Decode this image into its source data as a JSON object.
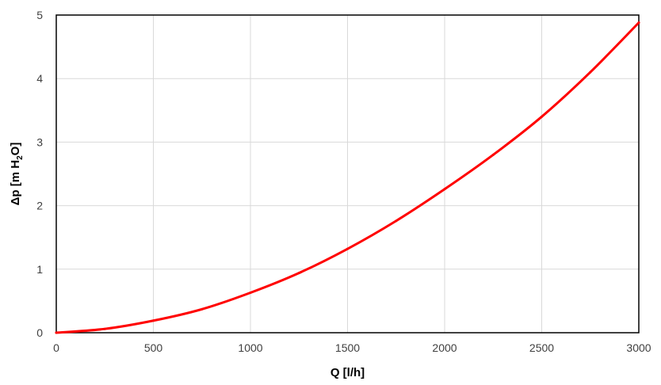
{
  "chart_data": {
    "type": "line",
    "title": "",
    "xlabel": "Q [l/h]",
    "ylabel": {
      "prefix": "Δp [m H",
      "sub": "2",
      "suffix": "O]"
    },
    "xlim": [
      0,
      3000
    ],
    "ylim": [
      0,
      5
    ],
    "x_ticks": [
      0,
      500,
      1000,
      1500,
      2000,
      2500,
      3000
    ],
    "y_ticks": [
      0,
      1,
      2,
      3,
      4,
      5
    ],
    "grid": true,
    "legend": "none",
    "series": [
      {
        "color": "#ff0000",
        "x": [
          0,
          250,
          500,
          750,
          1000,
          1250,
          1500,
          1750,
          2000,
          2250,
          2500,
          2750,
          3000
        ],
        "y": [
          0,
          0.06,
          0.19,
          0.37,
          0.63,
          0.94,
          1.32,
          1.76,
          2.26,
          2.8,
          3.4,
          4.1,
          4.88
        ]
      }
    ]
  }
}
